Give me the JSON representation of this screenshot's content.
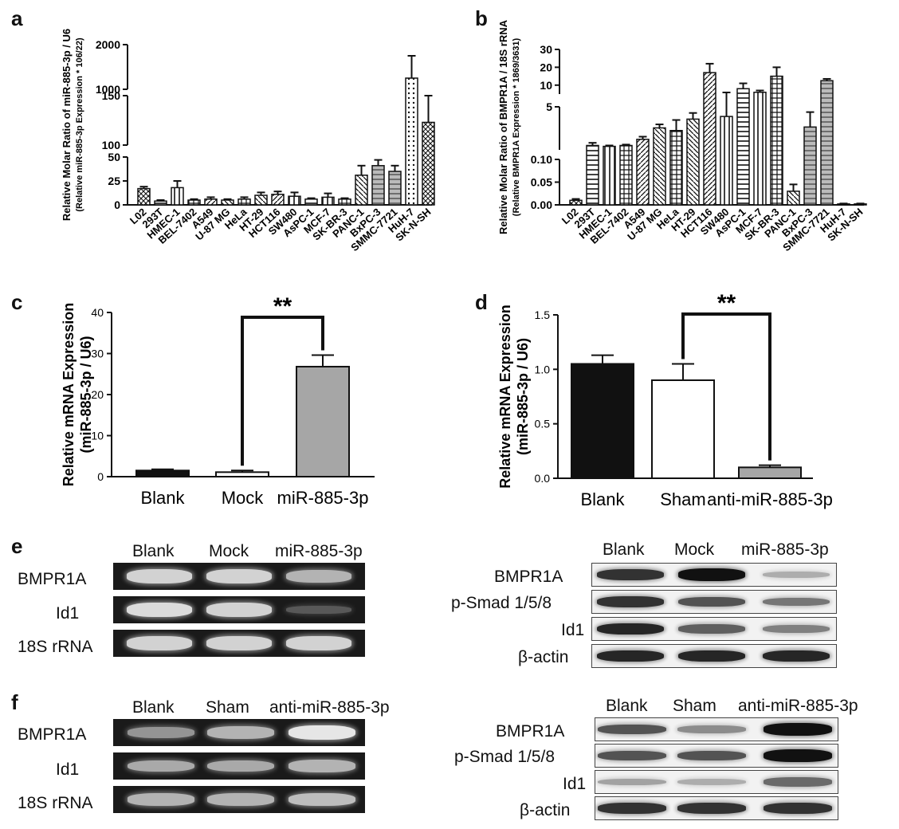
{
  "panels": {
    "a": "a",
    "b": "b",
    "c": "c",
    "d": "d",
    "e": "e",
    "f": "f"
  },
  "cell_lines": [
    "L02",
    "293T",
    "HMEC-1",
    "BEL-7402",
    "A549",
    "U-87 MG",
    "HeLa",
    "HT-29",
    "HCT116",
    "SW480",
    "AsPC-1",
    "MCF-7",
    "SK-BR-3",
    "PANC-1",
    "BxPC-3",
    "SMMC-7721",
    "HuH-7",
    "SK-N-SH"
  ],
  "chart_data": [
    {
      "id": "a",
      "type": "bar",
      "ylabel_main": "Relative Molar Ratio of miR-885-3p / U6",
      "ylabel_sub": "(Relative miR-885-3p Expression * 106/22)",
      "broken_axis": true,
      "y_segments": [
        [
          0,
          50
        ],
        [
          100,
          150
        ],
        [
          1000,
          2000
        ]
      ],
      "yticks": [
        "0",
        "25",
        "50",
        "100",
        "150",
        "1000",
        "2000"
      ],
      "values": [
        17,
        4,
        18,
        5,
        6,
        5,
        6,
        10,
        11,
        9,
        6,
        8,
        6,
        31,
        41,
        35,
        1250,
        123
      ],
      "errors": [
        2,
        1,
        7,
        1,
        2,
        1,
        2,
        3,
        3,
        4,
        1,
        4,
        1,
        10,
        6,
        6,
        500,
        27
      ]
    },
    {
      "id": "b",
      "type": "bar",
      "ylabel_main": "Relative Molar Ratio of BMPR1A / 18S rRNA",
      "ylabel_sub": "(Relative BMPR1A Expression * 1869/3631)",
      "broken_axis": true,
      "y_segments": [
        [
          0,
          0.1
        ],
        [
          0.1,
          5
        ],
        [
          5,
          30
        ]
      ],
      "yticks": [
        "0.00",
        "0.05",
        "0.10",
        "5",
        "10",
        "20",
        "30"
      ],
      "values": [
        0.01,
        0.6,
        0.5,
        0.6,
        1.3,
        2.6,
        2.3,
        3.6,
        17,
        3.9,
        8,
        6,
        15,
        0.03,
        2.7,
        12.5,
        0.002,
        0.002
      ],
      "errors": [
        0.003,
        0.3,
        0.1,
        0.1,
        0.3,
        0.4,
        1.2,
        0.7,
        5,
        2,
        3,
        1,
        5,
        0.015,
        1.7,
        1,
        0.001,
        0.001
      ]
    },
    {
      "id": "c",
      "type": "bar",
      "ylabel": "Relative mRNA Expression",
      "ylabel_sub": "(miR-885-3p / U6)",
      "categories": [
        "Blank",
        "Mock",
        "miR-885-3p"
      ],
      "values": [
        1.5,
        1.1,
        26.8
      ],
      "errors": [
        0.3,
        0.4,
        2.8
      ],
      "colors": [
        "#111111",
        "#ffffff",
        "#a6a6a6"
      ],
      "ylim": [
        0,
        40
      ],
      "yticks": [
        0,
        10,
        20,
        30,
        40
      ],
      "significance": "**"
    },
    {
      "id": "d",
      "type": "bar",
      "ylabel": "Relative mRNA Expression",
      "ylabel_sub": "(miR-885-3p / U6)",
      "categories": [
        "Blank",
        "Sham",
        "anti-miR-885-3p"
      ],
      "values": [
        1.05,
        0.9,
        0.1
      ],
      "errors": [
        0.08,
        0.15,
        0.02
      ],
      "colors": [
        "#111111",
        "#ffffff",
        "#a6a6a6"
      ],
      "ylim": [
        0,
        1.5
      ],
      "yticks": [
        "0.0",
        "0.5",
        "1.0",
        "1.5"
      ],
      "significance": "**"
    }
  ],
  "blots": {
    "e_lanes": [
      "Blank",
      "Mock",
      "miR-885-3p"
    ],
    "f_lanes": [
      "Blank",
      "Sham",
      "anti-miR-885-3p"
    ],
    "gel_rows": [
      "BMPR1A",
      "Id1",
      "18S rRNA"
    ],
    "wb_rows": [
      "BMPR1A",
      "p-Smad 1/5/8",
      "Id1",
      "β-actin"
    ],
    "e_gel": [
      [
        0.9,
        0.9,
        0.75
      ],
      [
        0.95,
        0.9,
        0.3
      ],
      [
        0.9,
        0.9,
        0.9
      ]
    ],
    "e_wb": [
      [
        0.85,
        1.0,
        0.3
      ],
      [
        0.85,
        0.7,
        0.55
      ],
      [
        0.9,
        0.65,
        0.5
      ],
      [
        0.9,
        0.9,
        0.9
      ]
    ],
    "f_gel": [
      [
        0.6,
        0.75,
        1.0
      ],
      [
        0.7,
        0.7,
        0.75
      ],
      [
        0.75,
        0.75,
        0.8
      ]
    ],
    "f_wb": [
      [
        0.7,
        0.45,
        1.0
      ],
      [
        0.7,
        0.7,
        1.0
      ],
      [
        0.35,
        0.3,
        0.6
      ],
      [
        0.85,
        0.85,
        0.85
      ]
    ]
  }
}
